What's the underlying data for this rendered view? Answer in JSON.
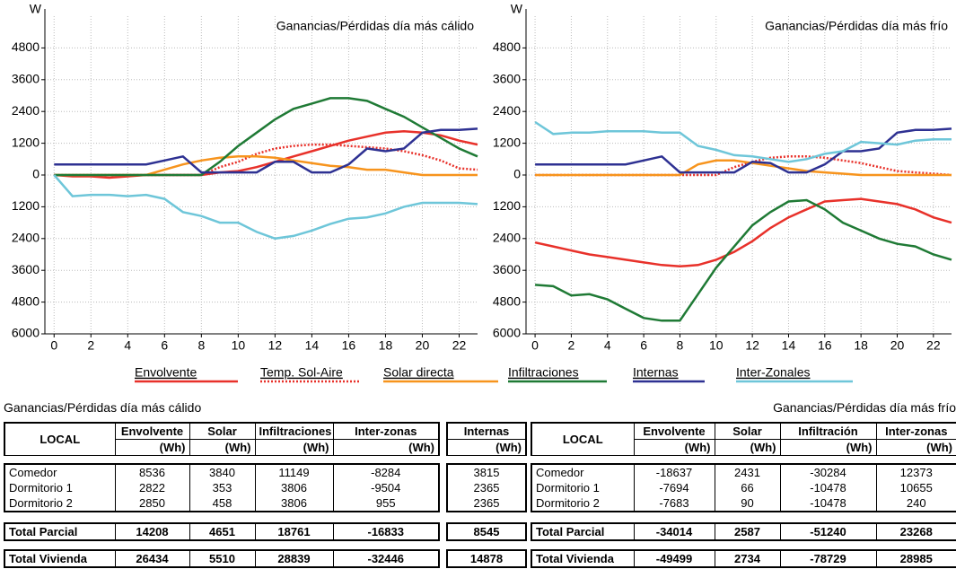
{
  "chart_data": [
    {
      "type": "line",
      "title": "Ganancias/Pérdidas día más cálido",
      "y_label": "W",
      "x": [
        0,
        1,
        2,
        3,
        4,
        5,
        6,
        7,
        8,
        9,
        10,
        11,
        12,
        13,
        14,
        15,
        16,
        17,
        18,
        19,
        20,
        21,
        22,
        23
      ],
      "xlim": [
        -0.5,
        23
      ],
      "xticks": [
        0,
        2,
        4,
        6,
        8,
        10,
        12,
        14,
        16,
        18,
        20,
        22
      ],
      "ylim": [
        -6000,
        6000
      ],
      "yticks": [
        4800,
        3600,
        2400,
        1200,
        0,
        {
          "value": -1200,
          "label": "1200"
        },
        {
          "value": -2400,
          "label": "2400"
        },
        {
          "value": -3600,
          "label": "3600"
        },
        {
          "value": -4800,
          "label": "4800"
        },
        {
          "value": -6000,
          "label": "6000"
        }
      ],
      "grid": true,
      "series": [
        {
          "name": "Envolvente",
          "color": "#e8312a",
          "style": "solid",
          "values": [
            0,
            -50,
            -50,
            -100,
            -50,
            0,
            0,
            0,
            0,
            100,
            150,
            300,
            500,
            700,
            900,
            1100,
            1300,
            1450,
            1600,
            1650,
            1600,
            1500,
            1300,
            1150
          ]
        },
        {
          "name": "Temp. Sol-Aire",
          "color": "#e8312a",
          "style": "dotted",
          "values": [
            0,
            0,
            0,
            0,
            0,
            0,
            0,
            0,
            0,
            300,
            500,
            800,
            1000,
            1100,
            1150,
            1150,
            1100,
            1050,
            1000,
            900,
            750,
            550,
            250,
            200
          ]
        },
        {
          "name": "Solar directa",
          "color": "#f7941d",
          "style": "solid",
          "values": [
            0,
            0,
            0,
            0,
            0,
            0,
            200,
            400,
            550,
            650,
            700,
            700,
            650,
            550,
            450,
            350,
            300,
            200,
            200,
            100,
            0,
            0,
            0,
            0
          ]
        },
        {
          "name": "Infiltraciones",
          "color": "#1f7a35",
          "style": "solid",
          "values": [
            0,
            0,
            0,
            0,
            0,
            0,
            0,
            0,
            0,
            500,
            1100,
            1600,
            2100,
            2500,
            2700,
            2900,
            2900,
            2800,
            2500,
            2200,
            1800,
            1400,
            1000,
            700
          ]
        },
        {
          "name": "Internas",
          "color": "#2e3192",
          "style": "solid",
          "values": [
            400,
            400,
            400,
            400,
            400,
            400,
            550,
            700,
            100,
            100,
            100,
            100,
            500,
            500,
            100,
            100,
            400,
            1000,
            900,
            1000,
            1600,
            1700,
            1700,
            1750
          ]
        },
        {
          "name": "Inter-Zonales",
          "color": "#6ec6d9",
          "style": "solid",
          "values": [
            0,
            -800,
            -750,
            -750,
            -800,
            -750,
            -900,
            -1400,
            -1550,
            -1800,
            -1800,
            -2150,
            -2400,
            -2300,
            -2100,
            -1850,
            -1650,
            -1600,
            -1450,
            -1200,
            -1050,
            -1050,
            -1050,
            -1100
          ]
        }
      ]
    },
    {
      "type": "line",
      "title": "Ganancias/Pérdidas día más frío",
      "y_label": "W",
      "x": [
        0,
        1,
        2,
        3,
        4,
        5,
        6,
        7,
        8,
        9,
        10,
        11,
        12,
        13,
        14,
        15,
        16,
        17,
        18,
        19,
        20,
        21,
        22,
        23
      ],
      "xlim": [
        -0.5,
        23
      ],
      "xticks": [
        0,
        2,
        4,
        6,
        8,
        10,
        12,
        14,
        16,
        18,
        20,
        22
      ],
      "ylim": [
        -6000,
        6000
      ],
      "yticks": [
        4800,
        3600,
        2400,
        1200,
        0,
        {
          "value": -1200,
          "label": "1200"
        },
        {
          "value": -2400,
          "label": "2400"
        },
        {
          "value": -3600,
          "label": "3600"
        },
        {
          "value": -4800,
          "label": "4800"
        },
        {
          "value": -6000,
          "label": "6000"
        }
      ],
      "grid": true,
      "series": [
        {
          "name": "Envolvente",
          "color": "#e8312a",
          "style": "solid",
          "values": [
            -2550,
            -2700,
            -2850,
            -3000,
            -3100,
            -3200,
            -3300,
            -3400,
            -3450,
            -3400,
            -3200,
            -2900,
            -2500,
            -2000,
            -1600,
            -1300,
            -1000,
            -950,
            -900,
            -1000,
            -1100,
            -1300,
            -1600,
            -1800
          ]
        },
        {
          "name": "Temp. Sol-Aire",
          "color": "#e8312a",
          "style": "dotted",
          "values": [
            0,
            0,
            0,
            0,
            0,
            0,
            0,
            0,
            0,
            0,
            0,
            300,
            500,
            650,
            700,
            700,
            650,
            550,
            450,
            300,
            150,
            100,
            50,
            0
          ]
        },
        {
          "name": "Solar directa",
          "color": "#f7941d",
          "style": "solid",
          "values": [
            0,
            0,
            0,
            0,
            0,
            0,
            0,
            0,
            0,
            400,
            550,
            550,
            450,
            350,
            250,
            150,
            100,
            50,
            0,
            0,
            0,
            0,
            0,
            0
          ]
        },
        {
          "name": "Infiltraciones",
          "color": "#1f7a35",
          "style": "solid",
          "values": [
            -4150,
            -4200,
            -4550,
            -4500,
            -4700,
            -5050,
            -5400,
            -5500,
            -5500,
            -4500,
            -3500,
            -2700,
            -1900,
            -1400,
            -1000,
            -950,
            -1300,
            -1800,
            -2100,
            -2400,
            -2600,
            -2700,
            -3000,
            -3200
          ]
        },
        {
          "name": "Internas",
          "color": "#2e3192",
          "style": "solid",
          "values": [
            400,
            400,
            400,
            400,
            400,
            400,
            550,
            700,
            100,
            100,
            100,
            100,
            500,
            450,
            100,
            100,
            400,
            900,
            900,
            1000,
            1600,
            1700,
            1700,
            1750
          ]
        },
        {
          "name": "Inter-Zonales",
          "color": "#6ec6d9",
          "style": "solid",
          "values": [
            2000,
            1550,
            1600,
            1600,
            1650,
            1650,
            1650,
            1600,
            1600,
            1100,
            950,
            750,
            700,
            600,
            500,
            600,
            800,
            900,
            1250,
            1200,
            1150,
            1300,
            1350,
            1350
          ]
        }
      ]
    }
  ],
  "tables": [
    {
      "title": "Ganancias/Pérdidas día más cálido",
      "columns": [
        {
          "label": "LOCAL"
        },
        {
          "label": "Envolvente",
          "unit": "(Wh)"
        },
        {
          "label": "Solar",
          "unit": "(Wh)"
        },
        {
          "label": "Infiltraciones",
          "unit": "(Wh)"
        },
        {
          "label": "Inter-zonas",
          "unit": "(Wh)"
        }
      ],
      "rows": [
        [
          "Comedor",
          8536,
          3840,
          11149,
          -8284
        ],
        [
          "Dormitorio 1",
          2822,
          353,
          3806,
          -9504
        ],
        [
          "Dormitorio 2",
          2850,
          458,
          3806,
          955
        ]
      ],
      "totals": [
        [
          "Total Parcial",
          14208,
          4651,
          18761,
          -16833
        ],
        [
          "Total Vivienda",
          26434,
          5510,
          28839,
          -32446
        ]
      ]
    },
    {
      "columns": [
        {
          "label": "Internas",
          "unit": "(Wh)"
        }
      ],
      "rows": [
        [
          3815
        ],
        [
          2365
        ],
        [
          2365
        ]
      ],
      "totals": [
        [
          8545
        ],
        [
          14878
        ]
      ]
    },
    {
      "title": "Ganancias/Pérdidas día más frío",
      "columns": [
        {
          "label": "LOCAL"
        },
        {
          "label": "Envolvente",
          "unit": "(Wh)"
        },
        {
          "label": "Solar",
          "unit": "(Wh)"
        },
        {
          "label": "Infiltración",
          "unit": "(Wh)"
        },
        {
          "label": "Inter-zonas",
          "unit": "(Wh)"
        }
      ],
      "rows": [
        [
          "Comedor",
          -18637,
          2431,
          -30284,
          12373
        ],
        [
          "Dormitorio 1",
          -7694,
          66,
          -10478,
          10655
        ],
        [
          "Dormitorio 2",
          -7683,
          90,
          -10478,
          240
        ]
      ],
      "totals": [
        [
          "Total Parcial",
          -34014,
          2587,
          -51240,
          23268
        ],
        [
          "Total Vivienda",
          -49499,
          2734,
          -78729,
          28985
        ]
      ]
    }
  ]
}
